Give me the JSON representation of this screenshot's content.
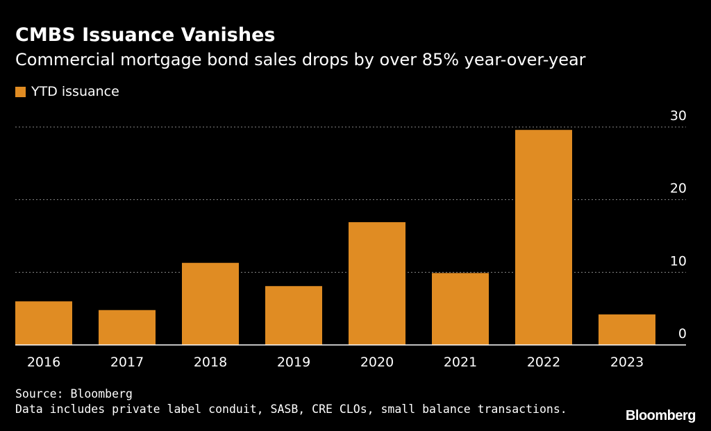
{
  "colors": {
    "background": "#000000",
    "bar": "#E08C23",
    "text": "#FFFFFF",
    "grid": "#8A8A8A"
  },
  "footer": {
    "source": "Source: Bloomberg",
    "note": "Data includes private label conduit, SASB, CRE CLOs, small balance transactions."
  },
  "brand": {
    "logo_text": "Bloomberg"
  },
  "chart_data": {
    "type": "bar",
    "title": "CMBS Issuance Vanishes",
    "subtitle": "Commercial mortgage bond sales drops by over 85% year-over-year",
    "xlabel": "",
    "ylabel": "",
    "legend": {
      "position": "top-left",
      "entries": [
        "YTD issuance"
      ]
    },
    "categories": [
      "2016",
      "2017",
      "2018",
      "2019",
      "2020",
      "2021",
      "2022",
      "2023"
    ],
    "series": [
      {
        "name": "YTD issuance",
        "values": [
          6.0,
          4.8,
          11.3,
          8.1,
          16.9,
          9.9,
          29.6,
          4.2
        ]
      }
    ],
    "ylim": [
      0,
      30
    ],
    "yticks": [
      0,
      10,
      20,
      30
    ],
    "ytick_labels": [
      "0",
      "10",
      "20",
      "30"
    ],
    "grid": true,
    "y_axis_side": "right"
  }
}
